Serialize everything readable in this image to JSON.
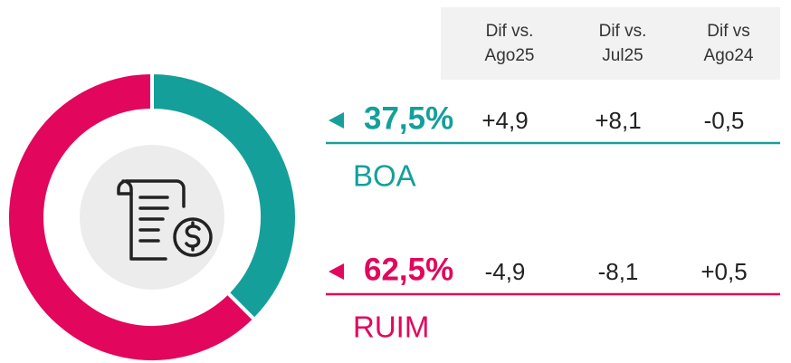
{
  "chart_data": {
    "type": "donut",
    "categories": [
      "BOA",
      "RUIM"
    ],
    "values": [
      37.5,
      62.5
    ],
    "value_labels": [
      "37,5%",
      "62,5%"
    ],
    "colors": [
      "#159f9b",
      "#e2065d"
    ],
    "columns": [
      [
        "Dif vs.",
        "Ago25"
      ],
      [
        "Dif vs.",
        "Jul25"
      ],
      [
        "Dif vs",
        "Ago24"
      ]
    ],
    "diffs": [
      [
        "+4,9",
        "+8,1",
        "-0,5"
      ],
      [
        "-4,9",
        "-8,1",
        "+0,5"
      ]
    ]
  }
}
